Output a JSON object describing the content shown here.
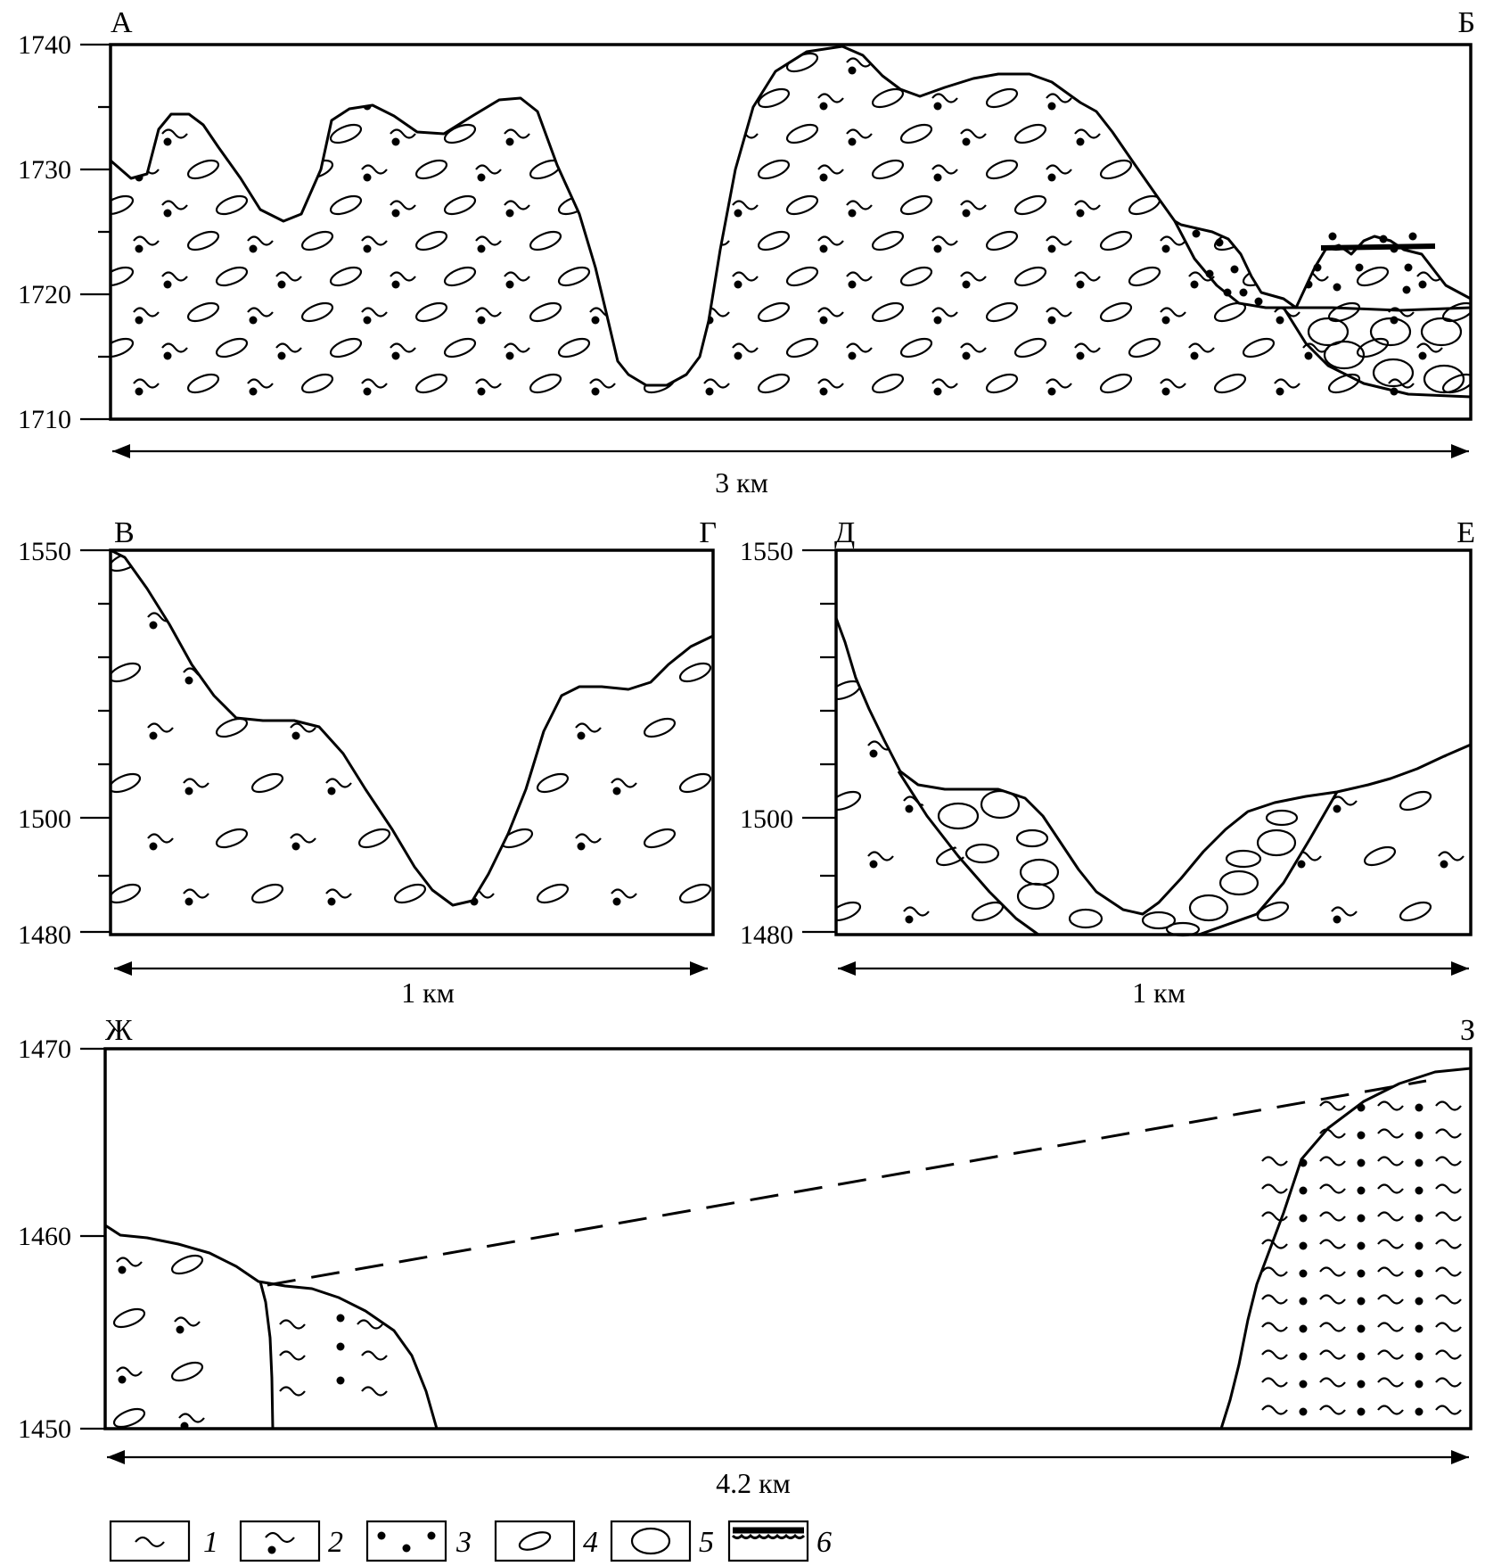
{
  "sections": [
    {
      "id": "ab",
      "left_label": "А",
      "right_label": "Б",
      "y_ticks": [
        "1740",
        "1730",
        "1720",
        "1710"
      ],
      "scale_label": "3 км"
    },
    {
      "id": "vg",
      "left_label": "В",
      "right_label": "Г",
      "y_ticks": [
        "1550",
        "1500",
        "1480"
      ],
      "scale_label": "1 км"
    },
    {
      "id": "de",
      "left_label": "Д",
      "right_label": "Е",
      "y_ticks": [
        "1550",
        "1500",
        "1480"
      ],
      "scale_label": "1 км"
    },
    {
      "id": "zhz",
      "left_label": "Ж",
      "right_label": "З",
      "y_ticks": [
        "1470",
        "1460",
        "1450"
      ],
      "scale_label": "4.2 км"
    }
  ],
  "legend": [
    {
      "number": "1",
      "pattern": "wave"
    },
    {
      "number": "2",
      "pattern": "wave-dot"
    },
    {
      "number": "3",
      "pattern": "dots"
    },
    {
      "number": "4",
      "pattern": "small-ellipse"
    },
    {
      "number": "5",
      "pattern": "large-ellipse"
    },
    {
      "number": "6",
      "pattern": "thick-wavy-line"
    }
  ]
}
